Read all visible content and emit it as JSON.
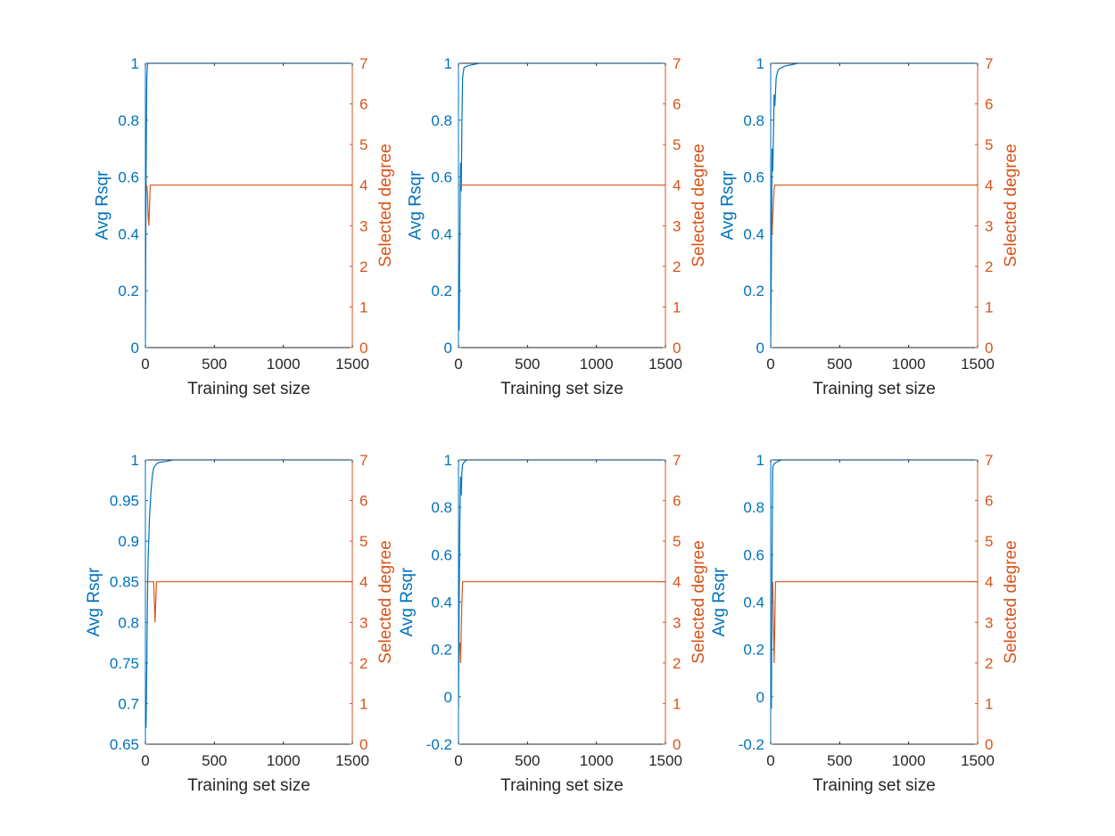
{
  "figure": {
    "colors": {
      "left_axis": "#0072BD",
      "right_axis": "#D95319",
      "axis_dark": "#262626"
    }
  },
  "chart_data": [
    {
      "type": "line",
      "xlabel": "Training set size",
      "ylabel_left": "Avg Rsqr",
      "ylabel_right": "Selected degree",
      "xlim": [
        0,
        1500
      ],
      "xticks": [
        0,
        500,
        1000,
        1500
      ],
      "xtick_labels": [
        "0",
        "500",
        "1000",
        "1500"
      ],
      "ylim_left": [
        0,
        1
      ],
      "yticks_left": [
        0,
        0.2,
        0.4,
        0.6,
        0.8,
        1
      ],
      "ytick_labels_left": [
        "0",
        "0.2",
        "0.4",
        "0.6",
        "0.8",
        "1"
      ],
      "ylim_right": [
        0,
        7
      ],
      "yticks_right": [
        0,
        1,
        2,
        3,
        4,
        5,
        6,
        7
      ],
      "ytick_labels_right": [
        "0",
        "1",
        "2",
        "3",
        "4",
        "5",
        "6",
        "7"
      ],
      "grid": false,
      "series": [
        {
          "axis": "left",
          "color": "#0072BD",
          "x": [
            0,
            5,
            10,
            15,
            20,
            30,
            40,
            60,
            80,
            100,
            1500
          ],
          "y": [
            0.03,
            0.6,
            0.95,
            0.995,
            1.0,
            1.0,
            1.0,
            1.0,
            1.0,
            1.0,
            1.0
          ]
        },
        {
          "axis": "right",
          "color": "#D95319",
          "x": [
            10,
            15,
            20,
            25,
            30,
            35,
            40,
            50,
            60,
            100,
            1500
          ],
          "y": [
            4,
            3.8,
            3.2,
            3.0,
            3.5,
            4.0,
            4.0,
            4.0,
            4.0,
            4.0,
            4.0
          ]
        }
      ]
    },
    {
      "type": "line",
      "xlabel": "Training set size",
      "ylabel_left": "Avg Rsqr",
      "ylabel_right": "Selected degree",
      "xlim": [
        0,
        1500
      ],
      "xticks": [
        0,
        500,
        1000,
        1500
      ],
      "xtick_labels": [
        "0",
        "500",
        "1000",
        "1500"
      ],
      "ylim_left": [
        0,
        1
      ],
      "yticks_left": [
        0,
        0.2,
        0.4,
        0.6,
        0.8,
        1
      ],
      "ytick_labels_left": [
        "0",
        "0.2",
        "0.4",
        "0.6",
        "0.8",
        "1"
      ],
      "ylim_right": [
        0,
        7
      ],
      "yticks_right": [
        0,
        1,
        2,
        3,
        4,
        5,
        6,
        7
      ],
      "ytick_labels_right": [
        "0",
        "1",
        "2",
        "3",
        "4",
        "5",
        "6",
        "7"
      ],
      "grid": false,
      "series": [
        {
          "axis": "left",
          "color": "#0072BD",
          "x": [
            5,
            10,
            15,
            20,
            25,
            30,
            40,
            60,
            100,
            150,
            200,
            1500
          ],
          "y": [
            0.06,
            0.4,
            0.65,
            0.55,
            0.8,
            0.95,
            0.985,
            0.99,
            0.995,
            1.0,
            1.0,
            1.0
          ]
        },
        {
          "axis": "right",
          "color": "#D95319",
          "x": [
            5,
            30,
            1500
          ],
          "y": [
            4,
            4,
            4
          ]
        }
      ]
    },
    {
      "type": "line",
      "xlabel": "Training set size",
      "ylabel_left": "Avg Rsqr",
      "ylabel_right": "Selected degree",
      "xlim": [
        0,
        1500
      ],
      "xticks": [
        0,
        500,
        1000,
        1500
      ],
      "xtick_labels": [
        "0",
        "500",
        "1000",
        "1500"
      ],
      "ylim_left": [
        0,
        1
      ],
      "yticks_left": [
        0,
        0.2,
        0.4,
        0.6,
        0.8,
        1
      ],
      "ytick_labels_left": [
        "0",
        "0.2",
        "0.4",
        "0.6",
        "0.8",
        "1"
      ],
      "ylim_right": [
        0,
        7
      ],
      "yticks_right": [
        0,
        1,
        2,
        3,
        4,
        5,
        6,
        7
      ],
      "ytick_labels_right": [
        "0",
        "1",
        "2",
        "3",
        "4",
        "5",
        "6",
        "7"
      ],
      "grid": false,
      "series": [
        {
          "axis": "left",
          "color": "#0072BD",
          "x": [
            0,
            5,
            10,
            15,
            20,
            25,
            30,
            40,
            50,
            60,
            80,
            100,
            150,
            200,
            1500
          ],
          "y": [
            0.01,
            0.3,
            0.7,
            0.62,
            0.75,
            0.89,
            0.85,
            0.95,
            0.97,
            0.98,
            0.985,
            0.99,
            0.995,
            1.0,
            1.0
          ]
        },
        {
          "axis": "right",
          "color": "#D95319",
          "x": [
            10,
            15,
            20,
            25,
            30,
            40,
            1500
          ],
          "y": [
            2.8,
            3.2,
            3.6,
            3.9,
            4.0,
            4.0,
            4.0
          ]
        }
      ]
    },
    {
      "type": "line",
      "xlabel": "Training set size",
      "ylabel_left": "Avg Rsqr",
      "ylabel_right": "Selected degree",
      "xlim": [
        0,
        1500
      ],
      "xticks": [
        0,
        500,
        1000,
        1500
      ],
      "xtick_labels": [
        "0",
        "500",
        "1000",
        "1500"
      ],
      "ylim_left": [
        0.65,
        1
      ],
      "yticks_left": [
        0.65,
        0.7,
        0.75,
        0.8,
        0.85,
        0.9,
        0.95,
        1
      ],
      "ytick_labels_left": [
        "0.65",
        "0.7",
        "0.75",
        "0.8",
        "0.85",
        "0.9",
        "0.95",
        "1"
      ],
      "ylim_right": [
        0,
        7
      ],
      "yticks_right": [
        0,
        1,
        2,
        3,
        4,
        5,
        6,
        7
      ],
      "ytick_labels_right": [
        "0",
        "1",
        "2",
        "3",
        "4",
        "5",
        "6",
        "7"
      ],
      "grid": false,
      "series": [
        {
          "axis": "left",
          "color": "#0072BD",
          "x": [
            5,
            10,
            15,
            20,
            30,
            40,
            50,
            60,
            80,
            100,
            150,
            200,
            1500
          ],
          "y": [
            0.67,
            0.75,
            0.83,
            0.88,
            0.93,
            0.96,
            0.98,
            0.99,
            0.995,
            0.997,
            0.998,
            1.0,
            1.0
          ]
        },
        {
          "axis": "right",
          "color": "#D95319",
          "x": [
            20,
            60,
            65,
            70,
            75,
            80,
            1500
          ],
          "y": [
            4,
            4,
            3.5,
            3.0,
            3.5,
            4,
            4
          ]
        }
      ]
    },
    {
      "type": "line",
      "xlabel": "Training set size",
      "ylabel_left": "Avg Rsqr",
      "ylabel_right": "Selected degree",
      "xlim": [
        0,
        1500
      ],
      "xticks": [
        0,
        500,
        1000,
        1500
      ],
      "xtick_labels": [
        "0",
        "500",
        "1000",
        "1500"
      ],
      "ylim_left": [
        -0.2,
        1
      ],
      "yticks_left": [
        -0.2,
        0,
        0.2,
        0.4,
        0.6,
        0.8,
        1
      ],
      "ytick_labels_left": [
        "-0.2",
        "0",
        "0.2",
        "0.4",
        "0.6",
        "0.8",
        "1"
      ],
      "ylim_right": [
        0,
        7
      ],
      "yticks_right": [
        0,
        1,
        2,
        3,
        4,
        5,
        6,
        7
      ],
      "ytick_labels_right": [
        "0",
        "1",
        "2",
        "3",
        "4",
        "5",
        "6",
        "7"
      ],
      "grid": false,
      "series": [
        {
          "axis": "left",
          "color": "#0072BD",
          "x": [
            0,
            5,
            10,
            15,
            20,
            25,
            30,
            40,
            60,
            100,
            1500
          ],
          "y": [
            -0.05,
            0.4,
            0.75,
            0.93,
            0.85,
            0.95,
            0.98,
            0.99,
            1.0,
            1.0,
            1.0
          ]
        },
        {
          "axis": "right",
          "color": "#D95319",
          "x": [
            10,
            15,
            20,
            25,
            30,
            1500
          ],
          "y": [
            2.5,
            2.0,
            2.8,
            3.5,
            4.0,
            4.0
          ]
        }
      ]
    },
    {
      "type": "line",
      "xlabel": "Training set size",
      "ylabel_left": "Avg Rsqr",
      "ylabel_right": "Selected degree",
      "xlim": [
        0,
        1500
      ],
      "xticks": [
        0,
        500,
        1000,
        1500
      ],
      "xtick_labels": [
        "0",
        "500",
        "1000",
        "1500"
      ],
      "ylim_left": [
        -0.2,
        1
      ],
      "yticks_left": [
        -0.2,
        0,
        0.2,
        0.4,
        0.6,
        0.8,
        1
      ],
      "ytick_labels_left": [
        "-0.2",
        "0",
        "0.2",
        "0.4",
        "0.6",
        "0.8",
        "1"
      ],
      "ylim_right": [
        0,
        7
      ],
      "yticks_right": [
        0,
        1,
        2,
        3,
        4,
        5,
        6,
        7
      ],
      "ytick_labels_right": [
        "0",
        "1",
        "2",
        "3",
        "4",
        "5",
        "6",
        "7"
      ],
      "grid": false,
      "series": [
        {
          "axis": "left",
          "color": "#0072BD",
          "x": [
            5,
            10,
            15,
            20,
            30,
            40,
            60,
            80,
            100,
            1500
          ],
          "y": [
            -0.05,
            0.6,
            0.97,
            0.98,
            0.985,
            0.99,
            0.995,
            1.0,
            1.0,
            1.0
          ]
        },
        {
          "axis": "right",
          "color": "#D95319",
          "x": [
            15,
            20,
            25,
            30,
            35,
            40,
            1500
          ],
          "y": [
            4,
            3.0,
            2.0,
            3.0,
            4.0,
            4.0,
            4.0
          ]
        }
      ]
    }
  ]
}
